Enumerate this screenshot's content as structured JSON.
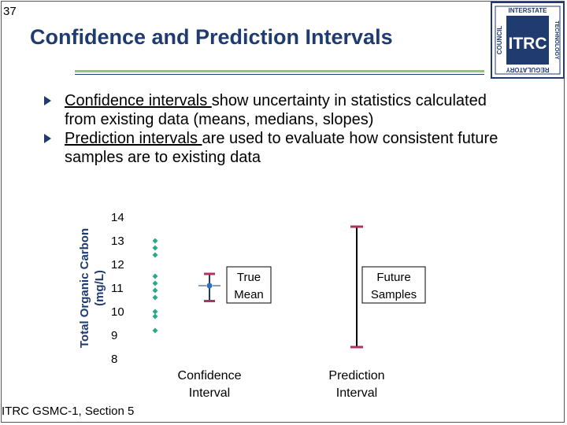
{
  "slide": {
    "number": "37",
    "title": "Confidence and Prediction Intervals",
    "footer": "ITRC GSMC-1, Section 5"
  },
  "logo": {
    "main": "ITRC",
    "top_text": "INTERSTATE",
    "left_text": "COUNCIL",
    "right_text": "TECHNOLOGY",
    "bottom_text": "REGULATORY"
  },
  "bullets": [
    {
      "term": "Confidence intervals ",
      "rest": "show uncertainty in statistics calculated from existing data (means, medians, slopes)"
    },
    {
      "term": "Prediction intervals ",
      "rest": "are used to evaluate how consistent future samples are to existing data"
    }
  ],
  "colors": {
    "title": "#1f3b6f",
    "points": "#2ea88a",
    "mean_point": "#2f6fbf",
    "confidence_caps": "#b03060",
    "prediction_caps": "#b03060",
    "accent_rule": "#93c47d"
  },
  "chart_data": {
    "type": "scatter",
    "ylabel": "Total Organic Carbon (mg/L)",
    "ylim": [
      8,
      14
    ],
    "yticks": [
      "14",
      "13",
      "12",
      "11",
      "10",
      "9",
      "8"
    ],
    "points": [
      13.0,
      12.7,
      12.4,
      11.5,
      11.2,
      10.9,
      10.6,
      10.0,
      9.8,
      9.2
    ],
    "confidence_interval": {
      "label": "Confidence Interval",
      "low": 10.45,
      "high": 11.6,
      "mean": 11.1
    },
    "prediction_interval": {
      "label": "Prediction Interval",
      "low": 8.5,
      "high": 13.6
    },
    "annotations": {
      "true_mean": [
        "True",
        "Mean"
      ],
      "future_samples": [
        "Future",
        "Samples"
      ]
    }
  }
}
